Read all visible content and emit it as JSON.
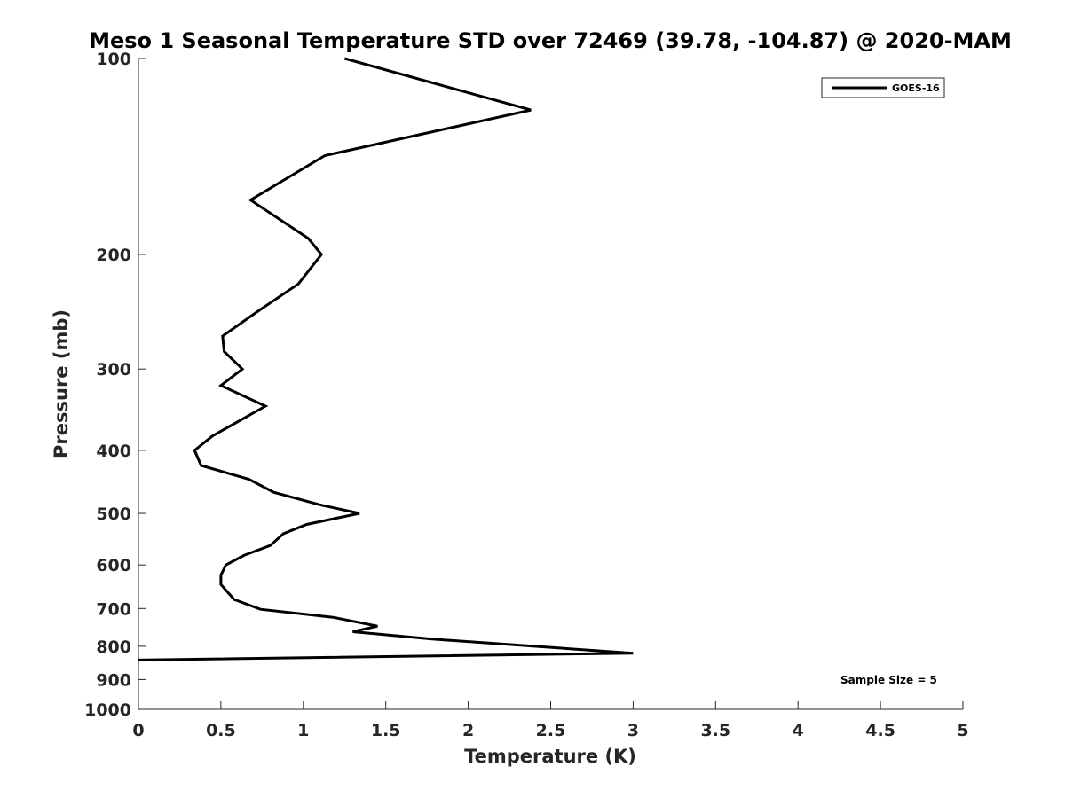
{
  "chart_data": {
    "type": "line",
    "title": "Meso 1 Seasonal Temperature STD over 72469 (39.78, -104.87) @ 2020-MAM",
    "xlabel": "Temperature (K)",
    "ylabel": "Pressure (mb)",
    "xlim": [
      0,
      5
    ],
    "ylim": [
      100,
      1000
    ],
    "y_scale": "log",
    "y_reversed": true,
    "x_ticks": [
      "0",
      "0.5",
      "1",
      "1.5",
      "2",
      "2.5",
      "3",
      "3.5",
      "4",
      "4.5",
      "5"
    ],
    "y_ticks": [
      "100",
      "200",
      "300",
      "400",
      "500",
      "600",
      "700",
      "800",
      "900",
      "1000"
    ],
    "grid": false,
    "legend_position": "top-right",
    "series": [
      {
        "name": "GOES-16",
        "color": "#000000",
        "points": [
          {
            "x": 1.25,
            "y": 100
          },
          {
            "x": 2.38,
            "y": 120
          },
          {
            "x": 1.13,
            "y": 141
          },
          {
            "x": 0.68,
            "y": 165
          },
          {
            "x": 1.03,
            "y": 189
          },
          {
            "x": 1.11,
            "y": 200
          },
          {
            "x": 0.97,
            "y": 222
          },
          {
            "x": 0.72,
            "y": 245
          },
          {
            "x": 0.51,
            "y": 267
          },
          {
            "x": 0.52,
            "y": 282
          },
          {
            "x": 0.63,
            "y": 300
          },
          {
            "x": 0.5,
            "y": 318
          },
          {
            "x": 0.77,
            "y": 342
          },
          {
            "x": 0.45,
            "y": 380
          },
          {
            "x": 0.34,
            "y": 400
          },
          {
            "x": 0.38,
            "y": 422
          },
          {
            "x": 0.67,
            "y": 443
          },
          {
            "x": 0.82,
            "y": 464
          },
          {
            "x": 1.1,
            "y": 485
          },
          {
            "x": 1.34,
            "y": 500
          },
          {
            "x": 1.02,
            "y": 520
          },
          {
            "x": 0.88,
            "y": 537
          },
          {
            "x": 0.8,
            "y": 560
          },
          {
            "x": 0.64,
            "y": 580
          },
          {
            "x": 0.53,
            "y": 600
          },
          {
            "x": 0.5,
            "y": 622
          },
          {
            "x": 0.5,
            "y": 643
          },
          {
            "x": 0.58,
            "y": 678
          },
          {
            "x": 0.74,
            "y": 702
          },
          {
            "x": 1.18,
            "y": 722
          },
          {
            "x": 1.45,
            "y": 745
          },
          {
            "x": 1.3,
            "y": 760
          },
          {
            "x": 1.78,
            "y": 780
          },
          {
            "x": 3.0,
            "y": 820
          },
          {
            "x": 0.0,
            "y": 840
          }
        ]
      }
    ],
    "annotations": [
      {
        "text": "Sample Size = 5"
      }
    ]
  }
}
